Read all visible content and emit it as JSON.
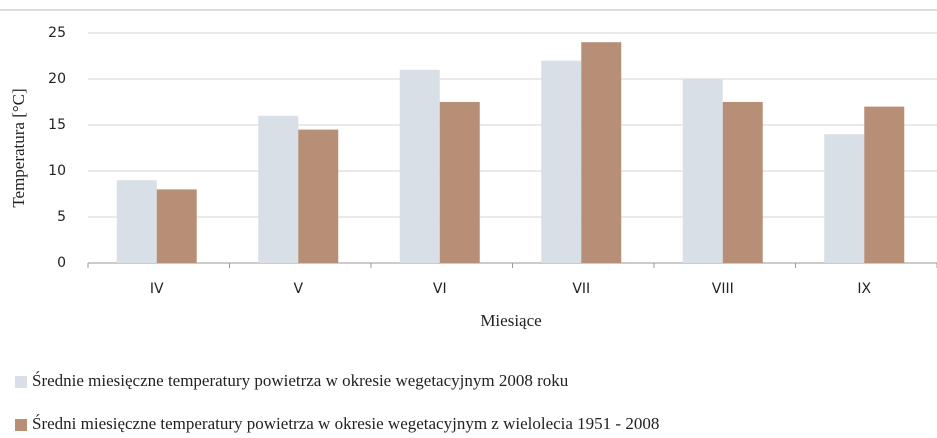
{
  "chart_data": {
    "type": "bar",
    "y_label": "Temperatura [°C]",
    "x_label": "Miesiące",
    "categories": [
      "IV",
      "V",
      "VI",
      "VII",
      "VIII",
      "IX"
    ],
    "series": [
      {
        "name": "Średnie miesięczne temperatury powietrza w okresie wegetacyjnym 2008 roku",
        "color": "#d9dfe6",
        "values": [
          9,
          16,
          21,
          22,
          20,
          14
        ]
      },
      {
        "name": "Średni miesięczne temperatury powietrza w okresie wegetacyjnym z wielolecia 1951 - 2008",
        "color": "#b68f76",
        "values": [
          8,
          14.5,
          17.5,
          24,
          17.5,
          17
        ]
      }
    ],
    "ylim": [
      0,
      25
    ],
    "yticks": [
      0,
      5,
      10,
      15,
      20,
      25
    ],
    "grid": true
  }
}
